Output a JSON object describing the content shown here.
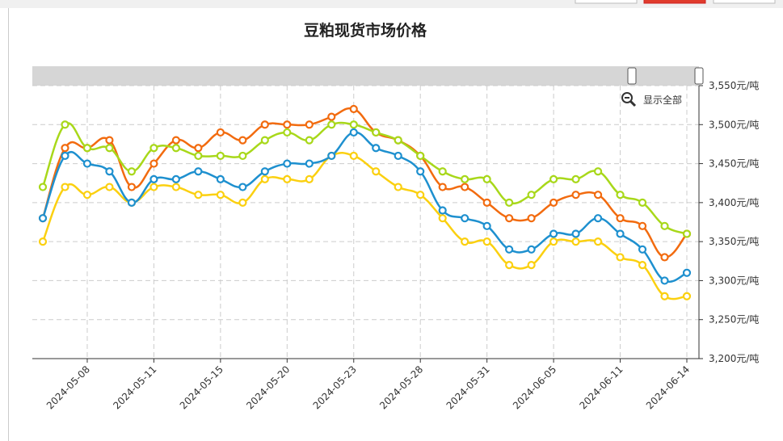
{
  "chart_data": {
    "type": "line",
    "title": "豆粕现货市场价格",
    "zoom_label": "显示全部",
    "categories": [
      null,
      null,
      "2024-05-08",
      null,
      null,
      "2024-05-11",
      null,
      null,
      "2024-05-15",
      null,
      null,
      "2024-05-20",
      null,
      null,
      "2024-05-23",
      null,
      null,
      "2024-05-28",
      null,
      null,
      "2024-05-31",
      null,
      null,
      "2024-06-05",
      null,
      null,
      "2024-06-11",
      null,
      null,
      "2024-06-14"
    ],
    "series": [
      {
        "color": "#f26b0f",
        "values": [
          3380,
          3470,
          3470,
          3480,
          3420,
          3450,
          3480,
          3470,
          3490,
          3480,
          3500,
          3500,
          3500,
          3510,
          3520,
          3490,
          3480,
          3460,
          3420,
          3420,
          3400,
          3380,
          3380,
          3400,
          3410,
          3410,
          3380,
          3370,
          3330,
          3360
        ]
      },
      {
        "color": "#a8d81a",
        "values": [
          3420,
          3500,
          3470,
          3470,
          3440,
          3470,
          3470,
          3460,
          3460,
          3460,
          3480,
          3490,
          3480,
          3500,
          3500,
          3490,
          3480,
          3460,
          3440,
          3430,
          3430,
          3400,
          3410,
          3430,
          3430,
          3440,
          3410,
          3400,
          3370,
          3360
        ]
      },
      {
        "color": "#fbd010",
        "values": [
          3350,
          3420,
          3410,
          3420,
          3400,
          3420,
          3420,
          3410,
          3410,
          3400,
          3430,
          3430,
          3430,
          3460,
          3460,
          3440,
          3420,
          3410,
          3380,
          3350,
          3350,
          3320,
          3320,
          3350,
          3350,
          3350,
          3330,
          3320,
          3280,
          3280
        ]
      },
      {
        "color": "#1e90cf",
        "values": [
          3380,
          3460,
          3450,
          3440,
          3400,
          3430,
          3430,
          3440,
          3430,
          3420,
          3440,
          3450,
          3450,
          3460,
          3490,
          3470,
          3460,
          3440,
          3390,
          3380,
          3370,
          3340,
          3340,
          3360,
          3360,
          3380,
          3360,
          3340,
          3300,
          3310
        ]
      }
    ],
    "ylim": [
      3200,
      3550
    ],
    "yticks": [
      {
        "value": 3200,
        "label": "3,200元/吨"
      },
      {
        "value": 3250,
        "label": "3,250元/吨"
      },
      {
        "value": 3300,
        "label": "3,300元/吨"
      },
      {
        "value": 3350,
        "label": "3,350元/吨"
      },
      {
        "value": 3400,
        "label": "3,400元/吨"
      },
      {
        "value": 3450,
        "label": "3,450元/吨"
      },
      {
        "value": 3500,
        "label": "3,500元/吨"
      },
      {
        "value": 3550,
        "label": "3,550元/吨"
      }
    ],
    "grid": true
  }
}
